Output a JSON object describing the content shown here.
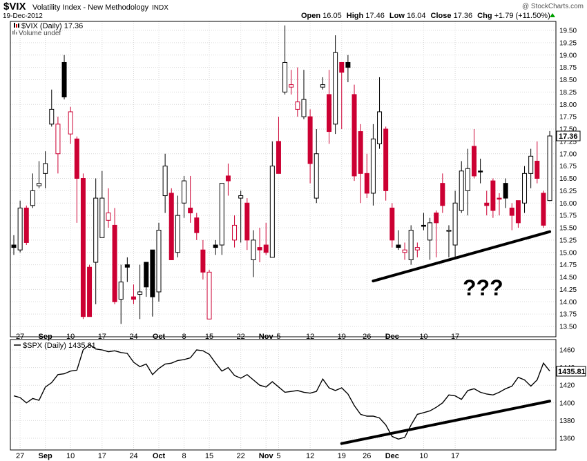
{
  "header": {
    "symbol": "$VIX",
    "name": "Volatility Index - New Methodology",
    "exchange": "INDX",
    "date": "19-Dec-2012",
    "watermark": "@ StockCharts.com",
    "ohlc": {
      "open_label": "Open",
      "open": "16.05",
      "high_label": "High",
      "high": "17.46",
      "low_label": "Low",
      "low": "16.04",
      "close_label": "Close",
      "close": "17.36",
      "chg_label": "Chg",
      "chg": "+1.79 (+11.50%)"
    },
    "legend_vix": "$VIX (Daily) 17.36",
    "legend_volume": "Volume undef",
    "legend_spx": "$SPX (Daily) 1435.81",
    "annotation": "???"
  },
  "colors": {
    "up": "#ffffff",
    "down_fill": "#cc0033",
    "black": "#000000",
    "grid": "#d9d9d9",
    "spx_line": "#000000"
  },
  "chart_data": [
    {
      "type": "candlestick",
      "title": "$VIX (Daily) 17.36",
      "ylim": [
        13.4,
        19.7
      ],
      "y_ticks": [
        "13.50",
        "13.75",
        "14.00",
        "14.25",
        "14.50",
        "14.75",
        "15.00",
        "15.25",
        "15.50",
        "15.75",
        "16.00",
        "16.25",
        "16.50",
        "16.75",
        "17.00",
        "17.25",
        "17.50",
        "17.75",
        "18.00",
        "18.25",
        "18.50",
        "18.75",
        "19.00",
        "19.25",
        "19.50"
      ],
      "last_value_label": "17.36",
      "x_ticks": [
        {
          "label": "27",
          "i": 1,
          "month": false
        },
        {
          "label": "Sep",
          "i": 5,
          "month": true
        },
        {
          "label": "10",
          "i": 9,
          "month": false
        },
        {
          "label": "17",
          "i": 14,
          "month": false
        },
        {
          "label": "24",
          "i": 19,
          "month": false
        },
        {
          "label": "Oct",
          "i": 23,
          "month": true
        },
        {
          "label": "8",
          "i": 27,
          "month": false
        },
        {
          "label": "15",
          "i": 31,
          "month": false
        },
        {
          "label": "22",
          "i": 36,
          "month": false
        },
        {
          "label": "Nov",
          "i": 40,
          "month": true
        },
        {
          "label": "5",
          "i": 42,
          "month": false
        },
        {
          "label": "12",
          "i": 47,
          "month": false
        },
        {
          "label": "19",
          "i": 52,
          "month": false
        },
        {
          "label": "26",
          "i": 56,
          "month": false
        },
        {
          "label": "Dec",
          "i": 60,
          "month": true
        },
        {
          "label": "10",
          "i": 65,
          "month": false
        },
        {
          "label": "17",
          "i": 70,
          "month": false
        }
      ],
      "candles": [
        [
          15.15,
          15.1,
          15.35,
          14.95,
          "black"
        ],
        [
          15.05,
          15.9,
          16.05,
          15.0,
          "up"
        ],
        [
          15.9,
          15.2,
          15.95,
          15.15,
          "red"
        ],
        [
          15.95,
          16.25,
          16.6,
          15.9,
          "up"
        ],
        [
          16.35,
          16.4,
          16.85,
          16.3,
          "up"
        ],
        [
          16.6,
          16.8,
          17.05,
          16.3,
          "up"
        ],
        [
          17.6,
          17.9,
          18.3,
          17.55,
          "up"
        ],
        [
          17.0,
          17.6,
          17.75,
          16.6,
          "up-red"
        ],
        [
          18.85,
          18.15,
          19.0,
          18.1,
          "black"
        ],
        [
          17.4,
          17.85,
          17.95,
          17.2,
          "up-red"
        ],
        [
          17.3,
          16.5,
          17.35,
          15.6,
          "red"
        ],
        [
          16.5,
          13.7,
          16.6,
          13.65,
          "red"
        ],
        [
          13.7,
          14.7,
          14.75,
          14.0,
          "red"
        ],
        [
          14.8,
          16.1,
          16.5,
          13.95,
          "up"
        ],
        [
          15.3,
          16.1,
          16.65,
          15.4,
          "up"
        ],
        [
          15.8,
          15.65,
          16.3,
          15.5,
          "up-red"
        ],
        [
          15.55,
          14.0,
          15.9,
          13.95,
          "red"
        ],
        [
          14.05,
          14.4,
          14.75,
          13.55,
          "up"
        ],
        [
          14.75,
          14.7,
          14.9,
          14.4,
          "black"
        ],
        [
          14.1,
          14.05,
          14.35,
          13.95,
          "red"
        ],
        [
          14.15,
          14.2,
          14.75,
          13.65,
          "up"
        ],
        [
          14.3,
          14.8,
          14.8,
          14.1,
          "black"
        ],
        [
          14.1,
          15.05,
          15.05,
          13.7,
          "black"
        ],
        [
          14.2,
          15.45,
          15.6,
          14.0,
          "up"
        ],
        [
          16.15,
          16.75,
          17.0,
          15.8,
          "up"
        ],
        [
          16.2,
          14.85,
          16.3,
          14.85,
          "red"
        ],
        [
          15.0,
          15.75,
          16.15,
          14.9,
          "up"
        ],
        [
          16.0,
          16.45,
          16.55,
          15.7,
          "up"
        ],
        [
          15.9,
          15.8,
          16.55,
          15.6,
          "red"
        ],
        [
          15.7,
          15.4,
          15.8,
          15.25,
          "red"
        ],
        [
          15.05,
          14.6,
          15.25,
          14.45,
          "red"
        ],
        [
          14.6,
          13.65,
          14.65,
          13.65,
          "up-red"
        ],
        [
          15.15,
          15.1,
          15.25,
          14.95,
          "black"
        ],
        [
          15.15,
          16.4,
          16.4,
          14.95,
          "up"
        ],
        [
          16.55,
          16.45,
          16.8,
          16.15,
          "red"
        ],
        [
          15.25,
          15.55,
          15.75,
          15.1,
          "up-red"
        ],
        [
          16.1,
          16.15,
          16.25,
          15.2,
          "up"
        ],
        [
          16.0,
          15.25,
          16.1,
          15.05,
          "red"
        ],
        [
          15.25,
          14.85,
          15.45,
          14.5,
          "up"
        ],
        [
          15.05,
          15.1,
          15.5,
          14.8,
          "red"
        ],
        [
          15.15,
          15.0,
          15.6,
          14.95,
          "red"
        ],
        [
          14.9,
          16.75,
          17.25,
          14.9,
          "up"
        ],
        [
          17.25,
          16.6,
          17.75,
          16.6,
          "red"
        ],
        [
          18.25,
          18.85,
          19.6,
          18.2,
          "up"
        ],
        [
          18.35,
          18.4,
          18.7,
          18.2,
          "up-red"
        ],
        [
          18.05,
          17.9,
          18.75,
          17.75,
          "up-red"
        ],
        [
          17.75,
          18.1,
          18.7,
          17.7,
          "up"
        ],
        [
          17.75,
          16.8,
          17.9,
          16.4,
          "red"
        ],
        [
          17.0,
          16.1,
          17.5,
          16.0,
          "up"
        ],
        [
          18.35,
          18.4,
          18.55,
          18.3,
          "up"
        ],
        [
          18.2,
          17.45,
          18.7,
          17.2,
          "red"
        ],
        [
          17.6,
          19.05,
          19.4,
          17.4,
          "up"
        ],
        [
          18.85,
          18.65,
          18.85,
          17.5,
          "red"
        ],
        [
          18.85,
          18.75,
          19.0,
          18.45,
          "black"
        ],
        [
          18.2,
          16.55,
          18.4,
          16.45,
          "red"
        ],
        [
          17.45,
          16.6,
          17.6,
          16.0,
          "red"
        ],
        [
          16.6,
          16.2,
          17.0,
          16.1,
          "red"
        ],
        [
          16.2,
          17.3,
          17.6,
          15.95,
          "up"
        ],
        [
          17.2,
          17.85,
          18.55,
          17.1,
          "up"
        ],
        [
          17.5,
          16.25,
          17.55,
          16.05,
          "red"
        ],
        [
          15.9,
          15.25,
          16.0,
          15.1,
          "red"
        ],
        [
          15.15,
          15.1,
          15.45,
          15.05,
          "black"
        ],
        [
          15.05,
          15.0,
          15.2,
          14.85,
          "up-red"
        ],
        [
          14.85,
          15.45,
          15.55,
          14.75,
          "up"
        ],
        [
          15.1,
          15.05,
          15.2,
          14.9,
          "up-red"
        ],
        [
          15.55,
          15.55,
          15.8,
          15.45,
          "black"
        ],
        [
          15.25,
          15.6,
          15.7,
          14.85,
          "up"
        ],
        [
          15.8,
          15.6,
          15.85,
          14.9,
          "red"
        ],
        [
          16.4,
          15.95,
          16.6,
          15.8,
          "red"
        ],
        [
          15.45,
          15.45,
          15.55,
          14.9,
          "up"
        ],
        [
          15.15,
          16.0,
          16.25,
          14.9,
          "up"
        ],
        [
          16.65,
          15.85,
          16.85,
          15.8,
          "up"
        ],
        [
          16.25,
          16.7,
          17.1,
          15.75,
          "up"
        ],
        [
          17.15,
          16.55,
          17.5,
          16.5,
          "red"
        ],
        [
          16.65,
          16.65,
          16.9,
          16.4,
          "black"
        ],
        [
          16.0,
          15.95,
          16.25,
          15.75,
          "red"
        ],
        [
          16.45,
          15.85,
          16.5,
          15.7,
          "red"
        ],
        [
          16.1,
          16.1,
          16.2,
          15.75,
          "red"
        ],
        [
          16.4,
          16.1,
          16.5,
          15.9,
          "black"
        ],
        [
          15.9,
          15.75,
          16.0,
          15.45,
          "red"
        ],
        [
          16.05,
          15.6,
          16.05,
          15.5,
          "red"
        ],
        [
          16.0,
          16.6,
          16.75,
          15.8,
          "up"
        ],
        [
          16.6,
          16.95,
          17.1,
          16.3,
          "up"
        ],
        [
          16.85,
          16.5,
          17.25,
          16.4,
          "red"
        ],
        [
          16.2,
          15.55,
          16.25,
          15.5,
          "red"
        ],
        [
          16.05,
          17.36,
          17.46,
          16.04,
          "up"
        ]
      ],
      "trendline": [
        [
          57,
          14.42
        ],
        [
          85,
          15.42
        ]
      ]
    },
    {
      "type": "line",
      "title": "$SPX (Daily) 1435.81",
      "ylim": [
        1350,
        1470
      ],
      "y_ticks": [
        "1360",
        "1380",
        "1400",
        "1420",
        "1440",
        "1460"
      ],
      "last_value_label": "1435.81",
      "values": [
        1410,
        1404,
        1410,
        1409,
        1408,
        1406,
        1400,
        1405,
        1403,
        1418,
        1423,
        1432,
        1433,
        1436,
        1437,
        1460,
        1466,
        1461,
        1460,
        1458,
        1459,
        1457,
        1456,
        1446,
        1441,
        1444,
        1432,
        1439,
        1444,
        1445,
        1448,
        1449,
        1451,
        1460,
        1459,
        1455,
        1445,
        1436,
        1440,
        1431,
        1428,
        1432,
        1426,
        1420,
        1418,
        1424,
        1418,
        1412,
        1413,
        1414,
        1412,
        1411,
        1413,
        1427,
        1417,
        1414,
        1417,
        1410,
        1397,
        1387,
        1385,
        1385,
        1383,
        1375,
        1362,
        1359,
        1361,
        1375,
        1387,
        1389,
        1391,
        1395,
        1400,
        1409,
        1408,
        1404,
        1414,
        1416,
        1412,
        1410,
        1409,
        1412,
        1416,
        1419,
        1429,
        1426,
        1419,
        1426,
        1445,
        1436
      ],
      "x_index_offset": -4,
      "trendline": [
        [
          52,
          1354
        ],
        [
          85,
          1402
        ]
      ]
    }
  ]
}
